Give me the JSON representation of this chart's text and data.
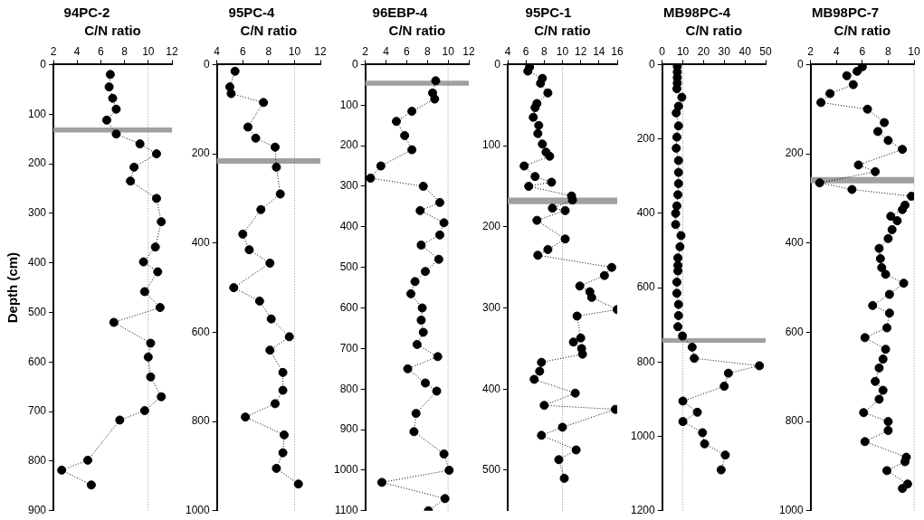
{
  "chart_data": [
    {
      "type": "line",
      "title": "94PC-2",
      "xlabel": "C/N ratio",
      "ylabel": "Depth (cm)",
      "xlim": [
        2,
        12
      ],
      "xticks": [
        2,
        4,
        6,
        8,
        10,
        12
      ],
      "ylim": [
        900,
        0
      ],
      "yticks": [
        0,
        100,
        200,
        300,
        400,
        500,
        600,
        700,
        800,
        900
      ],
      "marker": "circle",
      "line_style": "dotted",
      "grid": false,
      "legend": false,
      "ref_lines": [
        {
          "axis": "x",
          "value": 10,
          "color": "#888888",
          "line_style": "dotted"
        }
      ],
      "bands": [
        {
          "axis": "y",
          "from": 127,
          "to": 137,
          "color": "#a0a0a0"
        }
      ],
      "series": [
        {
          "color": "#000000",
          "x": [
            6.8,
            6.7,
            7.0,
            7.3,
            6.5,
            7.3,
            9.3,
            10.7,
            8.8,
            8.5,
            10.7,
            11.1,
            10.6,
            9.6,
            10.8,
            9.7,
            11.0,
            7.1,
            10.2,
            10.0,
            10.2,
            11.1,
            9.7,
            7.6,
            4.9,
            2.7,
            5.2
          ],
          "values": [
            20,
            45,
            68,
            90,
            112,
            140,
            160,
            180,
            207,
            235,
            270,
            317,
            368,
            398,
            418,
            458,
            490,
            520,
            562,
            590,
            630,
            670,
            698,
            717,
            798,
            818,
            848
          ]
        }
      ]
    },
    {
      "type": "line",
      "title": "95PC-4",
      "xlabel": "C/N ratio",
      "xlim": [
        4,
        12
      ],
      "xticks": [
        4,
        6,
        8,
        10,
        12
      ],
      "ylim": [
        1000,
        0
      ],
      "yticks": [
        0,
        200,
        400,
        600,
        800,
        1000
      ],
      "marker": "circle",
      "line_style": "dotted",
      "grid": false,
      "legend": false,
      "ref_lines": [
        {
          "axis": "x",
          "value": 10,
          "color": "#888888",
          "line_style": "dotted"
        }
      ],
      "bands": [
        {
          "axis": "y",
          "from": 210,
          "to": 222,
          "color": "#a0a0a0"
        }
      ],
      "series": [
        {
          "color": "#000000",
          "x": [
            5.4,
            5.0,
            5.1,
            7.6,
            6.4,
            7.0,
            8.5,
            8.6,
            8.9,
            7.4,
            6.0,
            6.5,
            8.1,
            5.3,
            7.3,
            8.2,
            9.6,
            8.1,
            9.1,
            9.1,
            8.5,
            6.2,
            9.2,
            9.1,
            8.6,
            10.3
          ],
          "values": [
            15,
            50,
            65,
            85,
            140,
            165,
            185,
            230,
            290,
            325,
            380,
            415,
            445,
            500,
            530,
            570,
            610,
            640,
            690,
            730,
            760,
            790,
            830,
            870,
            905,
            940
          ]
        }
      ]
    },
    {
      "type": "line",
      "title": "96EBP-4",
      "xlabel": "C/N ratio",
      "xlim": [
        2,
        12
      ],
      "xticks": [
        2,
        4,
        6,
        8,
        10,
        12
      ],
      "ylim": [
        1100,
        0
      ],
      "yticks": [
        0,
        100,
        200,
        300,
        400,
        500,
        600,
        700,
        800,
        900,
        1000,
        1100
      ],
      "marker": "circle",
      "line_style": "dotted",
      "grid": false,
      "legend": false,
      "ref_lines": [
        {
          "axis": "x",
          "value": 10,
          "color": "#888888",
          "line_style": "dotted"
        }
      ],
      "bands": [
        {
          "axis": "y",
          "from": 40,
          "to": 52,
          "color": "#a0a0a0"
        }
      ],
      "series": [
        {
          "color": "#000000",
          "x": [
            8.8,
            8.5,
            8.7,
            6.5,
            5.0,
            5.8,
            6.5,
            3.5,
            2.5,
            7.6,
            9.2,
            7.3,
            9.6,
            9.2,
            7.4,
            9.1,
            7.8,
            6.8,
            6.4,
            7.5,
            7.4,
            7.6,
            7.0,
            9.0,
            6.1,
            7.8,
            8.9,
            6.9,
            6.7,
            9.6,
            10.1,
            3.6,
            9.7,
            8.1
          ],
          "values": [
            40,
            70,
            85,
            115,
            140,
            175,
            210,
            250,
            280,
            300,
            340,
            360,
            390,
            420,
            445,
            480,
            510,
            535,
            565,
            600,
            630,
            660,
            690,
            720,
            750,
            785,
            805,
            860,
            905,
            960,
            1000,
            1030,
            1070,
            1100
          ]
        }
      ]
    },
    {
      "type": "line",
      "title": "95PC-1",
      "xlabel": "C/N ratio",
      "xlim": [
        4,
        16
      ],
      "xticks": [
        4,
        6,
        8,
        10,
        12,
        14,
        16
      ],
      "ylim": [
        550,
        0
      ],
      "yticks": [
        0,
        100,
        200,
        300,
        400,
        500
      ],
      "marker": "circle",
      "line_style": "dotted",
      "grid": false,
      "legend": false,
      "ref_lines": [
        {
          "axis": "x",
          "value": 10,
          "color": "#888888",
          "line_style": "dotted"
        }
      ],
      "bands": [
        {
          "axis": "y",
          "from": 164,
          "to": 172,
          "color": "#a0a0a0"
        }
      ],
      "series": [
        {
          "color": "#000000",
          "x": [
            6.4,
            6.2,
            7.8,
            7.6,
            8.4,
            7.2,
            7.0,
            6.8,
            7.4,
            7.3,
            7.8,
            8.2,
            8.6,
            5.8,
            7.0,
            8.8,
            6.3,
            11.0,
            11.1,
            8.9,
            10.3,
            7.2,
            10.3,
            8.4,
            7.3,
            15.4,
            14.6,
            11.9,
            13.0,
            13.2,
            16.0,
            11.6,
            12.0,
            11.2,
            12.1,
            12.2,
            7.7,
            7.5,
            6.9,
            11.4,
            8.0,
            15.8,
            10.0,
            7.7,
            11.5,
            9.6,
            10.2
          ],
          "values": [
            3,
            8,
            17,
            23,
            35,
            48,
            53,
            65,
            75,
            85,
            98,
            108,
            113,
            125,
            138,
            145,
            150,
            162,
            167,
            177,
            180,
            192,
            215,
            228,
            235,
            250,
            260,
            273,
            280,
            287,
            302,
            310,
            337,
            342,
            350,
            357,
            367,
            378,
            388,
            405,
            420,
            425,
            447,
            457,
            475,
            487,
            510
          ]
        }
      ]
    },
    {
      "type": "line",
      "title": "MB98PC-4",
      "xlabel": "C/N ratio",
      "xlim": [
        0,
        50
      ],
      "xticks": [
        0,
        10,
        20,
        30,
        40,
        50
      ],
      "ylim": [
        1200,
        0
      ],
      "yticks": [
        0,
        200,
        400,
        600,
        800,
        1000,
        1200
      ],
      "marker": "circle",
      "line_style": "dotted",
      "grid": false,
      "legend": false,
      "ref_lines": [
        {
          "axis": "x",
          "value": 10,
          "color": "#888888",
          "line_style": "dotted"
        }
      ],
      "bands": [
        {
          "axis": "y",
          "from": 736,
          "to": 748,
          "color": "#a0a0a0"
        }
      ],
      "series": [
        {
          "color": "#000000",
          "x": [
            7.3,
            7.3,
            7.3,
            7.3,
            7.1,
            9.5,
            7.9,
            6.8,
            7.9,
            7.1,
            6.8,
            7.9,
            7.9,
            7.9,
            7.6,
            7.1,
            6.5,
            6.5,
            9.1,
            8.6,
            7.6,
            7.6,
            7.6,
            7.1,
            7.1,
            7.9,
            7.9,
            7.6,
            9.8,
            14.5,
            15.5,
            47,
            32,
            30,
            10,
            17,
            10,
            19.5,
            20.5,
            30.5,
            28.5
          ],
          "values": [
            5,
            20,
            35,
            50,
            65,
            88,
            112,
            130,
            165,
            195,
            225,
            258,
            290,
            320,
            350,
            380,
            400,
            430,
            460,
            490,
            520,
            540,
            555,
            585,
            615,
            645,
            675,
            705,
            730,
            760,
            790,
            810,
            830,
            865,
            905,
            935,
            960,
            990,
            1020,
            1050,
            1090
          ]
        }
      ]
    },
    {
      "type": "line",
      "title": "MB98PC-7",
      "xlabel": "C/N ratio",
      "xlim": [
        2,
        10
      ],
      "xticks": [
        2,
        4,
        6,
        8,
        10
      ],
      "ylim": [
        1000,
        0
      ],
      "yticks": [
        0,
        200,
        400,
        600,
        800,
        1000
      ],
      "marker": "circle",
      "line_style": "dotted",
      "grid": false,
      "legend": false,
      "ref_lines": [
        {
          "axis": "x",
          "value": 10,
          "color": "#888888",
          "line_style": "dotted"
        }
      ],
      "bands": [
        {
          "axis": "y",
          "from": 252,
          "to": 266,
          "color": "#a0a0a0"
        }
      ],
      "series": [
        {
          "color": "#000000",
          "x": [
            6.0,
            5.6,
            4.8,
            5.3,
            3.5,
            2.8,
            6.4,
            7.7,
            7.2,
            8.0,
            9.1,
            5.7,
            7.0,
            2.7,
            5.2,
            9.8,
            9.3,
            9.1,
            8.2,
            8.7,
            8.3,
            8.0,
            7.3,
            7.4,
            7.5,
            7.8,
            9.2,
            8.1,
            6.8,
            8.1,
            7.9,
            6.2,
            7.8,
            7.6,
            7.3,
            7.0,
            7.6,
            7.3,
            6.1,
            8.0,
            8.0,
            6.2,
            9.4,
            9.3,
            7.9,
            9.5,
            9.1
          ],
          "values": [
            5,
            15,
            25,
            45,
            65,
            85,
            100,
            130,
            150,
            170,
            190,
            225,
            240,
            265,
            280,
            295,
            315,
            325,
            340,
            350,
            370,
            390,
            412,
            435,
            455,
            470,
            490,
            515,
            540,
            557,
            590,
            612,
            638,
            660,
            680,
            710,
            730,
            750,
            780,
            800,
            820,
            845,
            880,
            890,
            910,
            940,
            950
          ]
        }
      ]
    }
  ]
}
